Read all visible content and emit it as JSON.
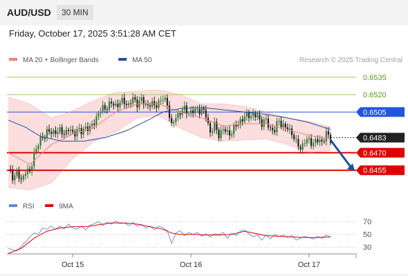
{
  "header": {
    "symbol": "AUD/USD",
    "timeframe": "30 MIN",
    "datetime": "Friday, October 17, 2025 3:51:28 AM CET"
  },
  "colors": {
    "bollinger": "#f08080",
    "bollinger_fill": "#fbd8d8",
    "ma50": "#1f4e9c",
    "candle_up": "#2e7d32",
    "candle_down": "#222222",
    "resistance_green": "#9acd5a",
    "resistance_blue": "#2255dd",
    "support_red": "#e00000",
    "rsi": "#5b8ad8",
    "rsi_ma": "#e00000",
    "arrow": "#1f4e9c"
  },
  "chart_data": [
    {
      "type": "candlestick",
      "legend": [
        {
          "name": "MA 20 + Bollinger Bands",
          "color": "#f08080"
        },
        {
          "name": "MA 50",
          "color": "#1f4e9c"
        }
      ],
      "watermark": "Research © 2025 Trading Central",
      "ylim": [
        0.644,
        0.6545
      ],
      "current_price": 0.6483,
      "levels": [
        {
          "value": 0.6535,
          "label": "0.6535",
          "kind": "resistance"
        },
        {
          "value": 0.652,
          "label": "0.6520",
          "kind": "resistance"
        },
        {
          "value": 0.6505,
          "label": "0.6505",
          "kind": "pivot"
        },
        {
          "value": 0.647,
          "label": "0.6470",
          "kind": "support"
        },
        {
          "value": 0.6455,
          "label": "0.6455",
          "kind": "support"
        }
      ],
      "x_ticks": [
        {
          "index": 30,
          "label": "Oct 15"
        },
        {
          "index": 85,
          "label": "Oct 16"
        },
        {
          "index": 140,
          "label": "Oct 17"
        }
      ],
      "forecast": {
        "from_index": 150,
        "from": 0.6481,
        "to_index": 160,
        "to": 0.6455
      },
      "close_path": [
        [
          0,
          0.6456
        ],
        [
          2,
          0.645
        ],
        [
          4,
          0.6452
        ],
        [
          6,
          0.6446
        ],
        [
          8,
          0.6455
        ],
        [
          10,
          0.6452
        ],
        [
          12,
          0.647
        ],
        [
          14,
          0.6477
        ],
        [
          16,
          0.6484
        ],
        [
          18,
          0.6488
        ],
        [
          20,
          0.6487
        ],
        [
          22,
          0.6489
        ],
        [
          24,
          0.6488
        ],
        [
          26,
          0.6487
        ],
        [
          28,
          0.649
        ],
        [
          30,
          0.6486
        ],
        [
          32,
          0.649
        ],
        [
          34,
          0.6487
        ],
        [
          36,
          0.6493
        ],
        [
          38,
          0.649
        ],
        [
          40,
          0.6497
        ],
        [
          42,
          0.6504
        ],
        [
          44,
          0.6508
        ],
        [
          46,
          0.651
        ],
        [
          48,
          0.6512
        ],
        [
          50,
          0.6511
        ],
        [
          52,
          0.6513
        ],
        [
          54,
          0.6514
        ],
        [
          56,
          0.6511
        ],
        [
          58,
          0.6516
        ],
        [
          60,
          0.6513
        ],
        [
          62,
          0.6515
        ],
        [
          64,
          0.6511
        ],
        [
          66,
          0.6512
        ],
        [
          68,
          0.651
        ],
        [
          70,
          0.6514
        ],
        [
          72,
          0.6516
        ],
        [
          74,
          0.6513
        ],
        [
          76,
          0.6492
        ],
        [
          78,
          0.6501
        ],
        [
          80,
          0.6505
        ],
        [
          82,
          0.6507
        ],
        [
          84,
          0.6505
        ],
        [
          86,
          0.6505
        ],
        [
          88,
          0.6507
        ],
        [
          90,
          0.6507
        ],
        [
          92,
          0.6502
        ],
        [
          94,
          0.6488
        ],
        [
          96,
          0.6493
        ],
        [
          98,
          0.6486
        ],
        [
          100,
          0.649
        ],
        [
          102,
          0.6487
        ],
        [
          104,
          0.6488
        ],
        [
          106,
          0.6493
        ],
        [
          108,
          0.6498
        ],
        [
          110,
          0.65
        ],
        [
          112,
          0.6503
        ],
        [
          114,
          0.6502
        ],
        [
          116,
          0.6501
        ],
        [
          118,
          0.6496
        ],
        [
          120,
          0.6497
        ],
        [
          122,
          0.6491
        ],
        [
          124,
          0.6489
        ],
        [
          126,
          0.6498
        ],
        [
          128,
          0.6493
        ],
        [
          130,
          0.649
        ],
        [
          132,
          0.6488
        ],
        [
          134,
          0.6478
        ],
        [
          136,
          0.6474
        ],
        [
          138,
          0.648
        ],
        [
          140,
          0.648
        ],
        [
          142,
          0.6479
        ],
        [
          144,
          0.648
        ],
        [
          146,
          0.648
        ],
        [
          148,
          0.6486
        ],
        [
          150,
          0.6481
        ]
      ],
      "bb_mid": [
        [
          0,
          0.647
        ],
        [
          10,
          0.646
        ],
        [
          20,
          0.6477
        ],
        [
          30,
          0.6486
        ],
        [
          40,
          0.6492
        ],
        [
          50,
          0.6505
        ],
        [
          60,
          0.6512
        ],
        [
          70,
          0.6512
        ],
        [
          80,
          0.6505
        ],
        [
          90,
          0.65
        ],
        [
          100,
          0.6493
        ],
        [
          110,
          0.6495
        ],
        [
          120,
          0.6495
        ],
        [
          130,
          0.649
        ],
        [
          140,
          0.6485
        ],
        [
          150,
          0.6482
        ]
      ],
      "bb_upper": [
        [
          0,
          0.6518
        ],
        [
          10,
          0.6512
        ],
        [
          20,
          0.65
        ],
        [
          30,
          0.6506
        ],
        [
          40,
          0.6515
        ],
        [
          50,
          0.6522
        ],
        [
          60,
          0.6523
        ],
        [
          70,
          0.6524
        ],
        [
          80,
          0.652
        ],
        [
          90,
          0.6512
        ],
        [
          100,
          0.6512
        ],
        [
          110,
          0.651
        ],
        [
          120,
          0.6505
        ],
        [
          130,
          0.65
        ],
        [
          140,
          0.6497
        ],
        [
          150,
          0.6492
        ]
      ],
      "bb_lower": [
        [
          0,
          0.644
        ],
        [
          10,
          0.6438
        ],
        [
          20,
          0.6444
        ],
        [
          30,
          0.6465
        ],
        [
          40,
          0.648
        ],
        [
          50,
          0.6488
        ],
        [
          60,
          0.65
        ],
        [
          70,
          0.6502
        ],
        [
          80,
          0.6491
        ],
        [
          90,
          0.6483
        ],
        [
          100,
          0.648
        ],
        [
          110,
          0.6481
        ],
        [
          120,
          0.6482
        ],
        [
          130,
          0.6477
        ],
        [
          140,
          0.647
        ],
        [
          150,
          0.6472
        ]
      ],
      "ma50": [
        [
          0,
          0.6498
        ],
        [
          8,
          0.6492
        ],
        [
          15,
          0.6484
        ],
        [
          25,
          0.648
        ],
        [
          35,
          0.648
        ],
        [
          45,
          0.6483
        ],
        [
          55,
          0.6489
        ],
        [
          65,
          0.6498
        ],
        [
          72,
          0.6505
        ],
        [
          80,
          0.6508
        ],
        [
          90,
          0.6509
        ],
        [
          100,
          0.6507
        ],
        [
          110,
          0.6505
        ],
        [
          120,
          0.6503
        ],
        [
          130,
          0.65
        ],
        [
          140,
          0.6496
        ],
        [
          150,
          0.649
        ]
      ]
    },
    {
      "type": "line",
      "legend": [
        {
          "name": "RSI",
          "color": "#5b8ad8"
        },
        {
          "name": "9MA",
          "color": "#e00000"
        }
      ],
      "ylim": [
        15,
        80
      ],
      "y_ticks": [
        70,
        50,
        30
      ],
      "series": [
        {
          "name": "RSI",
          "points": [
            [
              0,
              28
            ],
            [
              4,
              24
            ],
            [
              8,
              38
            ],
            [
              10,
              46
            ],
            [
              12,
              52
            ],
            [
              14,
              50
            ],
            [
              16,
              60
            ],
            [
              18,
              58
            ],
            [
              20,
              63
            ],
            [
              22,
              58
            ],
            [
              24,
              63
            ],
            [
              26,
              59
            ],
            [
              28,
              66
            ],
            [
              30,
              60
            ],
            [
              32,
              58
            ],
            [
              34,
              63
            ],
            [
              36,
              57
            ],
            [
              38,
              64
            ],
            [
              40,
              67
            ],
            [
              42,
              70
            ],
            [
              44,
              64
            ],
            [
              46,
              69
            ],
            [
              48,
              66
            ],
            [
              50,
              71
            ],
            [
              52,
              67
            ],
            [
              54,
              68
            ],
            [
              56,
              64
            ],
            [
              58,
              69
            ],
            [
              60,
              63
            ],
            [
              62,
              66
            ],
            [
              64,
              60
            ],
            [
              66,
              63
            ],
            [
              68,
              57
            ],
            [
              70,
              63
            ],
            [
              72,
              60
            ],
            [
              74,
              56
            ],
            [
              76,
              36
            ],
            [
              78,
              52
            ],
            [
              80,
              56
            ],
            [
              82,
              48
            ],
            [
              84,
              53
            ],
            [
              86,
              50
            ],
            [
              88,
              53
            ],
            [
              90,
              47
            ],
            [
              92,
              51
            ],
            [
              94,
              46
            ],
            [
              96,
              51
            ],
            [
              98,
              49
            ],
            [
              100,
              53
            ],
            [
              102,
              44
            ],
            [
              104,
              52
            ],
            [
              106,
              48
            ],
            [
              108,
              55
            ],
            [
              110,
              57
            ],
            [
              112,
              51
            ],
            [
              114,
              46
            ],
            [
              116,
              49
            ],
            [
              118,
              41
            ],
            [
              120,
              49
            ],
            [
              122,
              43
            ],
            [
              124,
              50
            ],
            [
              126,
              47
            ],
            [
              128,
              49
            ],
            [
              130,
              45
            ],
            [
              132,
              48
            ],
            [
              134,
              41
            ],
            [
              136,
              44
            ],
            [
              138,
              47
            ],
            [
              140,
              45
            ],
            [
              142,
              43
            ],
            [
              144,
              47
            ],
            [
              146,
              44
            ],
            [
              148,
              49
            ],
            [
              150,
              46
            ]
          ]
        },
        {
          "name": "9MA",
          "points": [
            [
              0,
              20
            ],
            [
              6,
              28
            ],
            [
              12,
              44
            ],
            [
              18,
              55
            ],
            [
              24,
              60
            ],
            [
              30,
              62
            ],
            [
              36,
              62
            ],
            [
              42,
              65
            ],
            [
              48,
              68
            ],
            [
              54,
              68
            ],
            [
              60,
              66
            ],
            [
              66,
              62
            ],
            [
              72,
              58
            ],
            [
              76,
              52
            ],
            [
              80,
              50
            ],
            [
              86,
              50
            ],
            [
              92,
              49
            ],
            [
              98,
              49
            ],
            [
              104,
              50
            ],
            [
              110,
              55
            ],
            [
              114,
              52
            ],
            [
              120,
              48
            ],
            [
              126,
              47
            ],
            [
              132,
              46
            ],
            [
              138,
              45
            ],
            [
              144,
              45
            ],
            [
              150,
              46
            ]
          ]
        }
      ]
    }
  ]
}
